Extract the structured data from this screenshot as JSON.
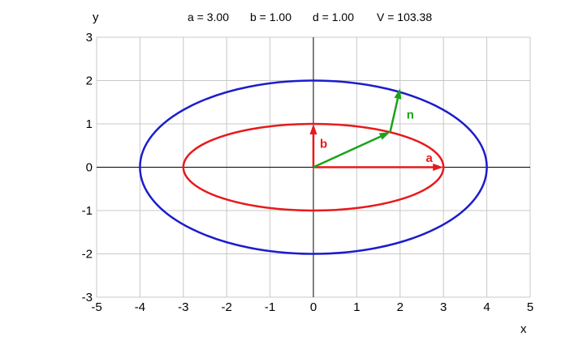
{
  "header": {
    "a_text": "a = 3.00",
    "b_text": "b = 1.00",
    "d_text": "d = 1.00",
    "v_text": "V = 103.38"
  },
  "chart_data": {
    "type": "line",
    "title": "",
    "xlabel": "x",
    "ylabel": "y",
    "xlim": [
      -5,
      5
    ],
    "ylim": [
      -3,
      3
    ],
    "x_ticks": [
      "-5",
      "-4",
      "-3",
      "-2",
      "-1",
      "0",
      "1",
      "2",
      "3",
      "4",
      "5"
    ],
    "y_ticks": [
      "-3",
      "-2",
      "-1",
      "0",
      "1",
      "2",
      "3"
    ],
    "grid": true,
    "params": {
      "a": 3.0,
      "b": 1.0,
      "d": 1.0,
      "V": 103.38
    },
    "series": [
      {
        "shape": "ellipse",
        "cx": 0,
        "cy": 0,
        "rx": 3,
        "ry": 1,
        "color": "#e8191c"
      },
      {
        "shape": "ellipse",
        "cx": 0,
        "cy": 0,
        "rx": 4,
        "ry": 2,
        "color": "#1c1ccc"
      }
    ],
    "vectors": [
      {
        "label": "a",
        "from": [
          0,
          0
        ],
        "to": [
          3,
          0
        ],
        "color": "#e8191c"
      },
      {
        "label": "b",
        "from": [
          0,
          0
        ],
        "to": [
          0,
          1
        ],
        "color": "#e8191c"
      },
      {
        "label": "",
        "from": [
          0,
          0
        ],
        "to": [
          1.77,
          0.81
        ],
        "color": "#1aa31a"
      },
      {
        "label": "n",
        "from": [
          1.77,
          0.81
        ],
        "to": [
          2.0,
          1.82
        ],
        "color": "#1aa31a"
      }
    ],
    "colors": {
      "grid": "#c8c8c8",
      "axes": "#000000"
    }
  }
}
